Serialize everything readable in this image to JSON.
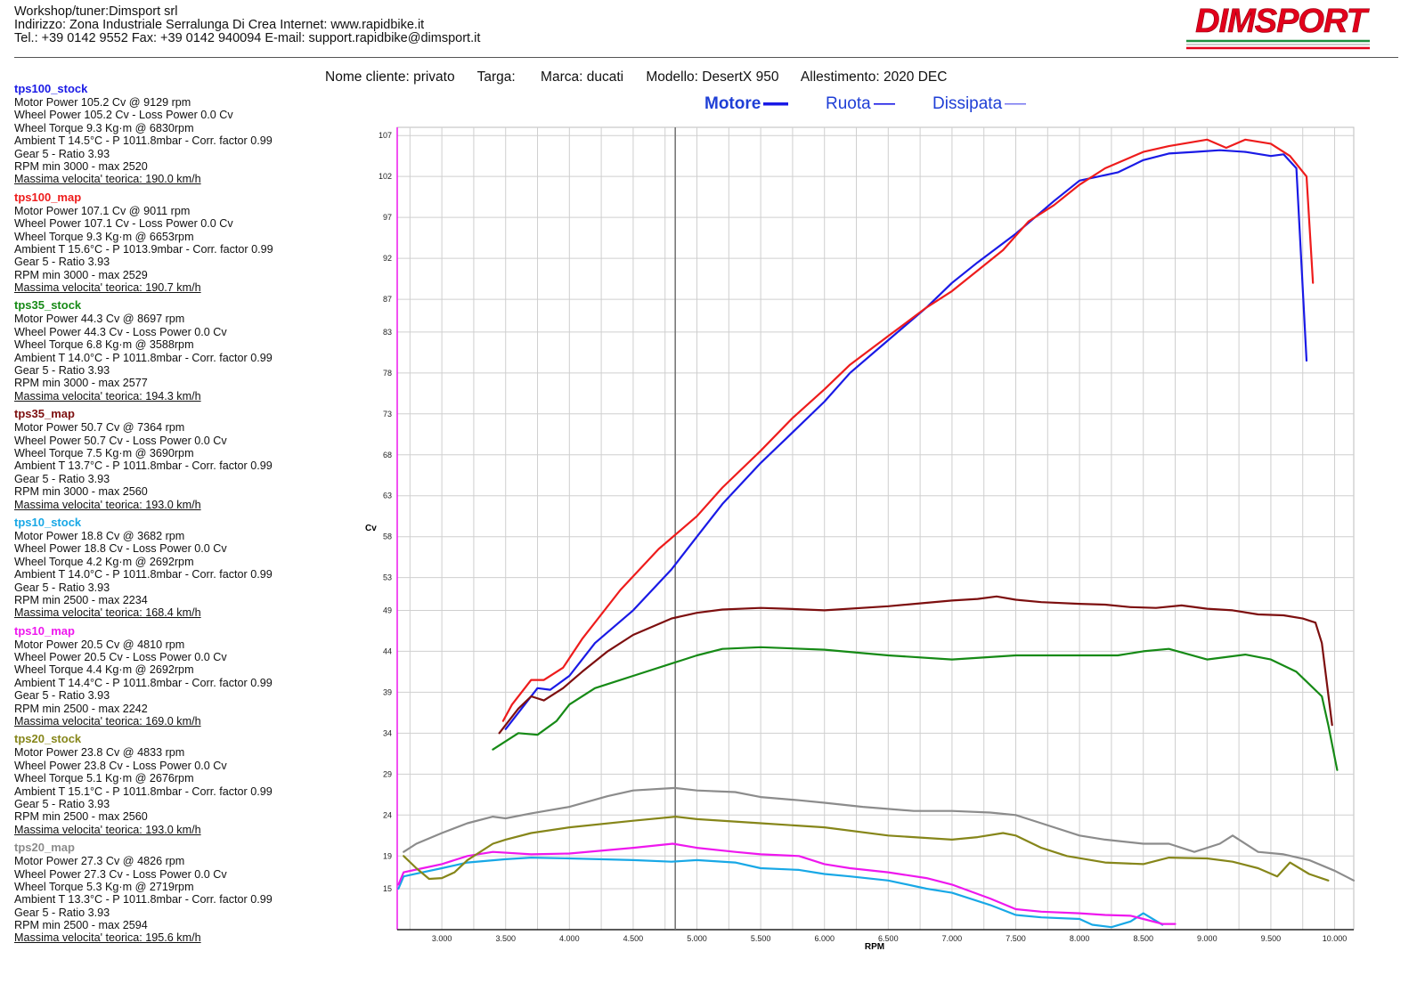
{
  "header": {
    "line1": "Workshop/tuner:Dimsport srl",
    "line2": "Indirizzo: Zona Industriale Serralunga Di Crea Internet: www.rapidbike.it",
    "line3": "Tel.: +39 0142 9552 Fax: +39 0142 940094 E-mail: support.rapidbike@dimsport.it"
  },
  "logo": {
    "text": "DIMSPORT",
    "colors": [
      "#e3001b",
      "#1e8e3e"
    ]
  },
  "meta": {
    "cliente": "Nome cliente: privato",
    "targa": "Targa:",
    "marca": "Marca: ducati",
    "modello": "Modello: DesertX 950",
    "allestimento": "Allestimento: 2020 DEC"
  },
  "legend": {
    "motore": "Motore",
    "ruota": "Ruota",
    "dissipata": "Dissipata"
  },
  "runs": [
    {
      "name": "tps100_stock",
      "color": "#1a1ae6",
      "lines": [
        "Motor Power 105.2 Cv  @ 9129 rpm",
        "Wheel Power 105.2 Cv  - Loss Power 0.0 Cv",
        "Wheel Torque 9.3 Kg·m  @ 6830rpm",
        "Ambient T 14.5°C - P 1011.8mbar - Corr. factor 0.99",
        "Gear 5 - Ratio 3.93",
        "RPM min 3000 - max 2520"
      ],
      "vmax": "Massima velocita' teorica: 190.0 km/h"
    },
    {
      "name": "tps100_map",
      "color": "#ee1c1c",
      "lines": [
        "Motor Power 107.1 Cv  @ 9011 rpm",
        "Wheel Power 107.1 Cv  - Loss Power 0.0 Cv",
        "Wheel Torque 9.3 Kg·m  @ 6653rpm",
        "Ambient T 15.6°C - P 1013.9mbar - Corr. factor 0.99",
        "Gear 5 - Ratio 3.93",
        "RPM min 3000 - max 2529"
      ],
      "vmax": "Massima velocita' teorica: 190.7 km/h"
    },
    {
      "name": "tps35_stock",
      "color": "#168a16",
      "lines": [
        "Motor Power 44.3 Cv  @ 8697 rpm",
        "Wheel Power 44.3 Cv  - Loss Power 0.0 Cv",
        "Wheel Torque 6.8 Kg·m  @ 3588rpm",
        "Ambient T 14.0°C - P 1011.8mbar - Corr. factor 0.99",
        "Gear 5 - Ratio 3.93",
        "RPM min 3000 - max 2577"
      ],
      "vmax": "Massima velocita' teorica: 194.3 km/h"
    },
    {
      "name": "tps35_map",
      "color": "#7d0f0f",
      "lines": [
        "Motor Power 50.7 Cv  @ 7364 rpm",
        "Wheel Power 50.7 Cv  - Loss Power 0.0 Cv",
        "Wheel Torque 7.5 Kg·m  @ 3690rpm",
        "Ambient T 13.7°C - P 1011.8mbar - Corr. factor 0.99",
        "Gear 5 - Ratio 3.93",
        "RPM min 3000 - max 2560"
      ],
      "vmax": "Massima velocita' teorica: 193.0 km/h"
    },
    {
      "name": "tps10_stock",
      "color": "#18a8e6",
      "lines": [
        "Motor Power 18.8 Cv  @ 3682 rpm",
        "Wheel Power 18.8 Cv  - Loss Power 0.0 Cv",
        "Wheel Torque 4.2 Kg·m  @ 2692rpm",
        "Ambient T 14.0°C - P 1011.8mbar - Corr. factor 0.99",
        "Gear 5 - Ratio 3.93",
        "RPM min 2500 - max 2234"
      ],
      "vmax": "Massima velocita' teorica: 168.4 km/h"
    },
    {
      "name": "tps10_map",
      "color": "#ee18ee",
      "lines": [
        "Motor Power 20.5 Cv  @ 4810 rpm",
        "Wheel Power 20.5 Cv  - Loss Power 0.0 Cv",
        "Wheel Torque 4.4 Kg·m  @ 2692rpm",
        "Ambient T 14.4°C - P 1011.8mbar - Corr. factor 0.99",
        "Gear 5 - Ratio 3.93",
        "RPM min 2500 - max 2242"
      ],
      "vmax": "Massima velocita' teorica: 169.0 km/h"
    },
    {
      "name": "tps20_stock",
      "color": "#86861a",
      "lines": [
        "Motor Power 23.8 Cv  @ 4833 rpm",
        "Wheel Power 23.8 Cv  - Loss Power 0.0 Cv",
        "Wheel Torque 5.1 Kg·m  @ 2676rpm",
        "Ambient T 15.1°C - P 1011.8mbar - Corr. factor 0.99",
        "Gear 5 - Ratio 3.93",
        "RPM min 2500 - max 2560"
      ],
      "vmax": "Massima velocita' teorica: 193.0 km/h"
    },
    {
      "name": "tps20_map",
      "color": "#8c8c8c",
      "lines": [
        "Motor Power 27.3 Cv  @ 4826 rpm",
        "Wheel Power 27.3 Cv  - Loss Power 0.0 Cv",
        "Wheel Torque 5.3 Kg·m  @ 2719rpm",
        "Ambient T 13.3°C - P 1011.8mbar - Corr. factor 0.99",
        "Gear 5 - Ratio 3.93",
        "RPM min 2500 - max 2594"
      ],
      "vmax": "Massima velocita' teorica: 195.6 km/h"
    }
  ],
  "chart_data": {
    "type": "line",
    "title": "",
    "xlabel": "RPM",
    "ylabel": "Cv",
    "xlim": [
      2650,
      10150
    ],
    "ylim": [
      10,
      108
    ],
    "grid": true,
    "cursor_rpm": 4830,
    "x_ticks": [
      3000,
      3500,
      4000,
      4500,
      5000,
      5500,
      6000,
      6500,
      7000,
      7500,
      8000,
      8500,
      9000,
      9500,
      10000
    ],
    "x_tick_labels": [
      "3.000",
      "3.500",
      "4.000",
      "4.500",
      "5.000",
      "5.500",
      "6.000",
      "6.500",
      "7.000",
      "7.500",
      "8.000",
      "8.500",
      "9.000",
      "9.500",
      "10.000"
    ],
    "y_ticks": [
      15,
      19,
      24,
      29,
      34,
      39,
      44,
      49,
      53,
      58,
      63,
      68,
      73,
      78,
      83,
      87,
      92,
      97,
      102,
      107
    ],
    "series": [
      {
        "name": "tps100_stock",
        "color": "#1a1ae6",
        "x": [
          3500,
          3600,
          3750,
          3850,
          4000,
          4200,
          4500,
          4800,
          5000,
          5200,
          5500,
          5700,
          6000,
          6200,
          6500,
          6800,
          7000,
          7200,
          7500,
          7800,
          8000,
          8300,
          8500,
          8700,
          8900,
          9100,
          9300,
          9500,
          9600,
          9700,
          9780
        ],
        "y": [
          34.5,
          36.5,
          39.5,
          39.3,
          41,
          45,
          49,
          54,
          58,
          62,
          67,
          70,
          74.5,
          78,
          82,
          86,
          89,
          91.5,
          95,
          99,
          101.5,
          102.5,
          104,
          104.8,
          105,
          105.2,
          105,
          104.5,
          104.7,
          103,
          79.5
        ]
      },
      {
        "name": "tps100_map",
        "color": "#ee1c1c",
        "x": [
          3480,
          3550,
          3700,
          3800,
          3950,
          4100,
          4400,
          4700,
          5000,
          5200,
          5500,
          5750,
          6000,
          6200,
          6500,
          6800,
          7000,
          7200,
          7400,
          7600,
          7800,
          8000,
          8200,
          8500,
          8700,
          9000,
          9150,
          9300,
          9500,
          9650,
          9780,
          9830
        ],
        "y": [
          35.5,
          37.5,
          40.5,
          40.5,
          42,
          45.5,
          51.5,
          56.5,
          60.5,
          64,
          68.5,
          72.5,
          76,
          79,
          82.5,
          86,
          88,
          90.5,
          93,
          96.5,
          98.5,
          101,
          103,
          105,
          105.7,
          106.5,
          105.5,
          106.5,
          106,
          104.5,
          102,
          89
        ]
      },
      {
        "name": "tps35_stock",
        "color": "#168a16",
        "x": [
          3400,
          3600,
          3750,
          3900,
          4000,
          4200,
          4500,
          4800,
          5000,
          5200,
          5500,
          6000,
          6500,
          7000,
          7500,
          8000,
          8300,
          8500,
          8700,
          9000,
          9300,
          9500,
          9700,
          9800,
          9900,
          9950,
          10020
        ],
        "y": [
          32,
          34,
          33.8,
          35.5,
          37.5,
          39.5,
          41,
          42.5,
          43.5,
          44.3,
          44.5,
          44.2,
          43.5,
          43,
          43.5,
          43.5,
          43.5,
          44,
          44.3,
          43,
          43.6,
          43,
          41.5,
          40,
          38.5,
          35,
          29.5
        ]
      },
      {
        "name": "tps35_map",
        "color": "#7d0f0f",
        "x": [
          3450,
          3600,
          3700,
          3800,
          3950,
          4100,
          4300,
          4500,
          4800,
          5000,
          5200,
          5500,
          5700,
          6000,
          6500,
          7000,
          7200,
          7350,
          7500,
          7700,
          8000,
          8200,
          8400,
          8600,
          8800,
          9000,
          9200,
          9400,
          9600,
          9750,
          9850,
          9900,
          9980
        ],
        "y": [
          34,
          37,
          38.5,
          38,
          39.5,
          41.5,
          44,
          46,
          48,
          48.7,
          49.1,
          49.3,
          49.2,
          49,
          49.5,
          50.2,
          50.4,
          50.7,
          50.3,
          50,
          49.8,
          49.7,
          49.4,
          49.3,
          49.6,
          49.2,
          49,
          48.5,
          48.4,
          48,
          47.5,
          45,
          35
        ]
      },
      {
        "name": "tps10_stock",
        "color": "#18a8e6",
        "x": [
          2660,
          2700,
          2850,
          3000,
          3200,
          3500,
          3700,
          4000,
          4500,
          4800,
          5000,
          5300,
          5500,
          5800,
          6000,
          6200,
          6500,
          6800,
          7000,
          7300,
          7500,
          7700,
          8000,
          8100,
          8250,
          8400,
          8500,
          8650
        ],
        "y": [
          15,
          16.5,
          17,
          17.5,
          18.2,
          18.6,
          18.8,
          18.7,
          18.5,
          18.3,
          18.5,
          18.2,
          17.5,
          17.3,
          16.8,
          16.5,
          16,
          15,
          14.5,
          13,
          11.8,
          11.5,
          11.3,
          10.6,
          10.3,
          11,
          12,
          10.6
        ]
      },
      {
        "name": "tps10_map",
        "color": "#ee18ee",
        "x": [
          2660,
          2700,
          2850,
          3000,
          3200,
          3400,
          3700,
          4000,
          4500,
          4810,
          5000,
          5300,
          5500,
          5800,
          6000,
          6200,
          6500,
          6800,
          7000,
          7300,
          7500,
          7700,
          8000,
          8200,
          8400,
          8500,
          8650,
          8750
        ],
        "y": [
          15.5,
          17,
          17.5,
          18,
          19,
          19.5,
          19.2,
          19.3,
          20,
          20.5,
          20,
          19.5,
          19.2,
          19,
          18,
          17.5,
          17,
          16.3,
          15.5,
          13.8,
          12.5,
          12.2,
          12,
          11.8,
          11.7,
          11.3,
          10.7,
          10.7
        ]
      },
      {
        "name": "tps20_stock",
        "color": "#86861a",
        "x": [
          2700,
          2800,
          2900,
          3000,
          3100,
          3200,
          3400,
          3500,
          3700,
          4000,
          4500,
          4833,
          5000,
          5500,
          6000,
          6500,
          7000,
          7200,
          7400,
          7500,
          7700,
          7900,
          8200,
          8500,
          8700,
          9000,
          9200,
          9400,
          9550,
          9650,
          9800,
          9950
        ],
        "y": [
          19,
          17.5,
          16.2,
          16.3,
          17,
          18.5,
          20.5,
          21,
          21.8,
          22.5,
          23.3,
          23.8,
          23.5,
          23,
          22.5,
          21.5,
          21,
          21.3,
          21.8,
          21.5,
          20,
          19,
          18.2,
          18,
          18.8,
          18.7,
          18.3,
          17.5,
          16.5,
          18.2,
          16.8,
          16
        ]
      },
      {
        "name": "tps20_map",
        "color": "#8c8c8c",
        "x": [
          2700,
          2800,
          3000,
          3200,
          3400,
          3500,
          3700,
          4000,
          4300,
          4500,
          4826,
          5000,
          5300,
          5500,
          5800,
          6000,
          6300,
          6700,
          7000,
          7300,
          7500,
          7700,
          8000,
          8200,
          8500,
          8700,
          8900,
          9100,
          9200,
          9400,
          9600,
          9800,
          10000,
          10150
        ],
        "y": [
          19.5,
          20.5,
          21.8,
          23,
          23.8,
          23.6,
          24.2,
          25,
          26.3,
          27,
          27.3,
          27,
          26.8,
          26.2,
          25.8,
          25.5,
          25,
          24.5,
          24.5,
          24.3,
          24,
          23,
          21.5,
          21,
          20.5,
          20.5,
          19.5,
          20.5,
          21.5,
          19.5,
          19.2,
          18.5,
          17.2,
          16
        ]
      }
    ]
  }
}
